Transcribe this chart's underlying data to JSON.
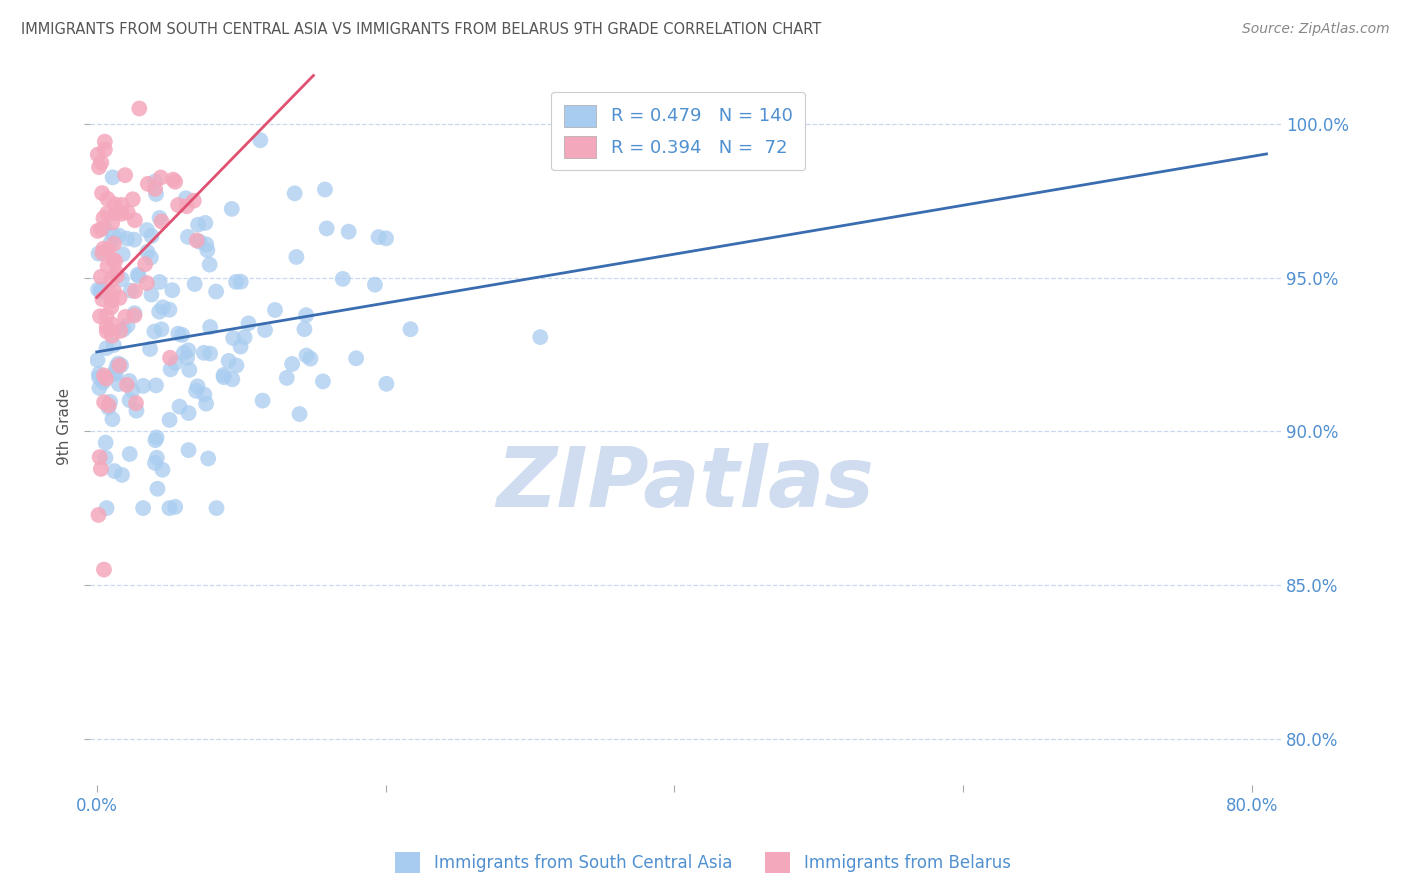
{
  "title": "IMMIGRANTS FROM SOUTH CENTRAL ASIA VS IMMIGRANTS FROM BELARUS 9TH GRADE CORRELATION CHART",
  "source": "Source: ZipAtlas.com",
  "xlabel_ticks": [
    "0.0%",
    "",
    "",
    "",
    "80.0%"
  ],
  "xlabel_tick_vals": [
    0.0,
    0.2,
    0.4,
    0.6,
    0.8
  ],
  "ylabel_ticks": [
    "100.0%",
    "95.0%",
    "90.0%",
    "85.0%",
    "80.0%"
  ],
  "ylabel_tick_vals": [
    1.0,
    0.95,
    0.9,
    0.85,
    0.8
  ],
  "ylabel_label": "9th Grade",
  "xlim": [
    -0.005,
    0.82
  ],
  "ylim": [
    0.785,
    1.018
  ],
  "blue_R": 0.479,
  "blue_N": 140,
  "pink_R": 0.394,
  "pink_N": 72,
  "blue_color": "#A8CCF0",
  "pink_color": "#F4A8BC",
  "trend_color": "#3A6CB0",
  "pink_trend_color": "#E05070",
  "legend_label_blue": "Immigrants from South Central Asia",
  "legend_label_pink": "Immigrants from Belarus",
  "watermark": "ZIPatlas",
  "watermark_color": "#D0DCF0",
  "background_color": "#FFFFFF",
  "grid_color": "#C8D8F0",
  "tick_color": "#5090D0",
  "ylabel_color": "#555555",
  "title_color": "#555555",
  "source_color": "#888888"
}
